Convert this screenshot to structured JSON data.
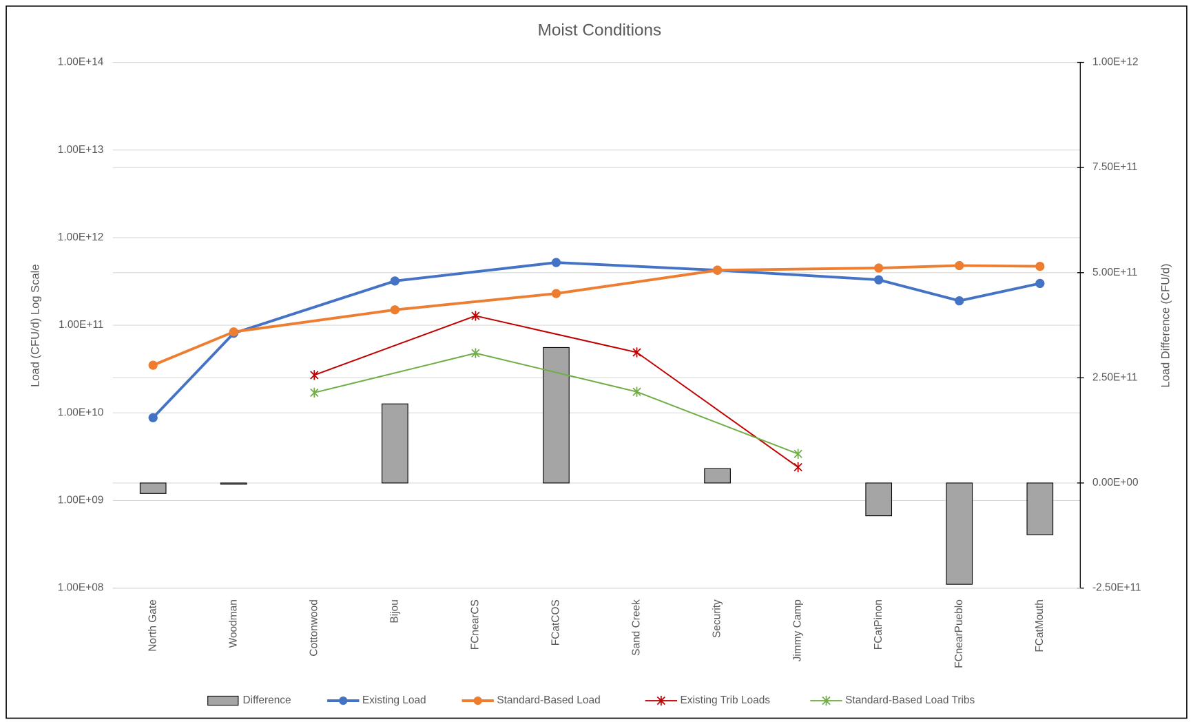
{
  "chart_data": {
    "type": "combo",
    "title": "Moist Conditions",
    "y_label": "Load (CFU/d) Log Scale",
    "y2_label": "Load Difference (CFU/d)",
    "categories": [
      "North Gate",
      "Woodman",
      "Cottonwood",
      "Bijou",
      "FCnearCS",
      "FCatCOS",
      "Sand Creek",
      "Security",
      "Jimmy Camp",
      "FCatPinon",
      "FCnearPueblo",
      "FCatMouth"
    ],
    "y_log": true,
    "ylim": [
      100000000,
      100000000000000
    ],
    "yticks": [
      {
        "value": 100000000,
        "label": "1.00E+08"
      },
      {
        "value": 1000000000,
        "label": "1.00E+09"
      },
      {
        "value": 10000000000,
        "label": "1.00E+10"
      },
      {
        "value": 100000000000,
        "label": "1.00E+11"
      },
      {
        "value": 1000000000000,
        "label": "1.00E+12"
      },
      {
        "value": 10000000000000,
        "label": "1.00E+13"
      },
      {
        "value": 100000000000000,
        "label": "1.00E+14"
      }
    ],
    "y2lim": [
      -250000000000,
      1000000000000
    ],
    "y2ticks": [
      {
        "value": -250000000000,
        "label": "-2.50E+11"
      },
      {
        "value": 0,
        "label": "0.00E+00"
      },
      {
        "value": 250000000000,
        "label": "2.50E+11"
      },
      {
        "value": 500000000000,
        "label": "5.00E+11"
      },
      {
        "value": 750000000000,
        "label": "7.50E+11"
      },
      {
        "value": 1000000000000,
        "label": "1.00E+12"
      }
    ],
    "grid": true,
    "span_gaps": true,
    "legend": "bottom",
    "series": [
      {
        "name": "Difference",
        "type": "bar",
        "axis": "y2",
        "color": "#a5a5a5",
        "values": [
          -25000000000,
          -3000000000,
          null,
          188000000000,
          null,
          322000000000,
          null,
          34000000000,
          null,
          -78000000000,
          -241000000000,
          -123000000000
        ]
      },
      {
        "name": "Existing Load",
        "type": "line",
        "axis": "y",
        "color": "#4472c4",
        "marker": "circle",
        "values": [
          8800000000,
          81000000000,
          null,
          320000000000,
          null,
          520000000000,
          null,
          425000000000,
          null,
          330000000000,
          190000000000,
          300000000000
        ]
      },
      {
        "name": "Standard-Based Load",
        "type": "line",
        "axis": "y",
        "color": "#ed7d31",
        "marker": "circle",
        "values": [
          35000000000,
          84000000000,
          null,
          150000000000,
          null,
          230000000000,
          null,
          425000000000,
          null,
          450000000000,
          480000000000,
          470000000000
        ]
      },
      {
        "name": "Existing Trib Loads",
        "type": "line",
        "axis": "y",
        "color": "#c00000",
        "marker": "star",
        "values": [
          null,
          null,
          27000000000,
          null,
          128000000000,
          null,
          49000000000,
          null,
          2400000000,
          null,
          null,
          null
        ]
      },
      {
        "name": "Standard-Based Load Tribs",
        "type": "line",
        "axis": "y",
        "color": "#70ad47",
        "marker": "star",
        "values": [
          null,
          null,
          17000000000,
          null,
          48000000000,
          null,
          17400000000,
          null,
          3400000000,
          null,
          null,
          null
        ]
      }
    ]
  }
}
